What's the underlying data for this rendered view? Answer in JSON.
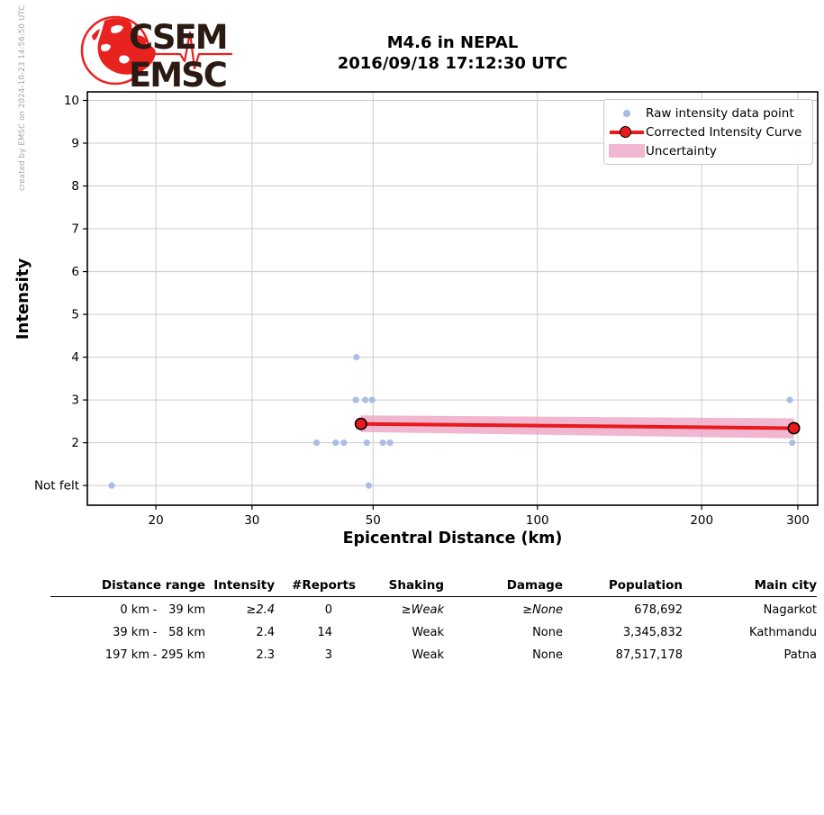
{
  "credit": "created by EMSC on 2024-10-23 14:56:50 UTC",
  "logo": {
    "line1": "CSEM",
    "line2": "EMSC"
  },
  "header": {
    "title_line1": "M4.6 in NEPAL",
    "title_line2": "2016/09/18 17:12:30 UTC"
  },
  "chart_data": {
    "type": "scatter",
    "x_scale": "log",
    "xlabel": "Epicentral Distance (km)",
    "ylabel": "Intensity",
    "xlim": [
      14.98,
      326.2
    ],
    "ylim": [
      0.54,
      10.2
    ],
    "x_ticks": [
      {
        "value": 20,
        "label": "20"
      },
      {
        "value": 30,
        "label": "30"
      },
      {
        "value": 50,
        "label": "50"
      },
      {
        "value": 100,
        "label": "100"
      },
      {
        "value": 200,
        "label": "200"
      },
      {
        "value": 300,
        "label": "300"
      }
    ],
    "y_ticks": [
      {
        "value": 1,
        "label": "Not felt"
      },
      {
        "value": 2,
        "label": "2"
      },
      {
        "value": 3,
        "label": "3"
      },
      {
        "value": 4,
        "label": "4"
      },
      {
        "value": 5,
        "label": "5"
      },
      {
        "value": 6,
        "label": "6"
      },
      {
        "value": 7,
        "label": "7"
      },
      {
        "value": 8,
        "label": "8"
      },
      {
        "value": 9,
        "label": "9"
      },
      {
        "value": 10,
        "label": "10"
      }
    ],
    "grid": true,
    "legend_position": "upper right",
    "legend": [
      {
        "label": "Raw intensity data point",
        "type": "dot"
      },
      {
        "label": "Corrected Intensity Curve",
        "type": "line-marker"
      },
      {
        "label": "Uncertainty",
        "type": "band"
      }
    ],
    "raw_points": [
      [
        16.6,
        1
      ],
      [
        49.1,
        1
      ],
      [
        39.4,
        2
      ],
      [
        42.7,
        2
      ],
      [
        44.2,
        2
      ],
      [
        48.7,
        2
      ],
      [
        52.1,
        2
      ],
      [
        53.7,
        2
      ],
      [
        293,
        2
      ],
      [
        46.5,
        3
      ],
      [
        48.4,
        3
      ],
      [
        49.8,
        3
      ],
      [
        290,
        3
      ],
      [
        46.6,
        4
      ]
    ],
    "corrected_curve": [
      [
        47.5,
        2.44
      ],
      [
        295,
        2.34
      ]
    ],
    "uncertainty_band": {
      "upper": [
        [
          47.5,
          2.64
        ],
        [
          295,
          2.57
        ]
      ],
      "lower": [
        [
          47.5,
          2.25
        ],
        [
          295,
          2.1
        ]
      ]
    },
    "colors": {
      "raw_point": "#a8b9e6",
      "curve": "#e81a1c",
      "marker_edge": "#000000",
      "uncertainty": "#ec9ec0",
      "grid": "#cbcbcb",
      "frame": "#000000"
    }
  },
  "logo_colors": {
    "red": "#e8231f",
    "text": "#2b1a12"
  },
  "table": {
    "headers": [
      "Distance range",
      "Intensity",
      "#Reports",
      "Shaking",
      "Damage",
      "Population",
      "Main city"
    ],
    "rows": [
      {
        "from": "0 km",
        "dash": "-",
        "to": "39 km",
        "intensity": "≥2.4",
        "reports": "0",
        "shaking": "≥Weak",
        "damage": "≥None",
        "population": "678,692",
        "city": "Nagarkot"
      },
      {
        "from": "39 km",
        "dash": "-",
        "to": "58 km",
        "intensity": "2.4",
        "reports": "14",
        "shaking": "Weak",
        "damage": "None",
        "population": "3,345,832",
        "city": "Kathmandu"
      },
      {
        "from": "197 km",
        "dash": "-",
        "to": "295 km",
        "intensity": "2.3",
        "reports": "3",
        "shaking": "Weak",
        "damage": "None",
        "population": "87,517,178",
        "city": "Patna"
      }
    ]
  }
}
